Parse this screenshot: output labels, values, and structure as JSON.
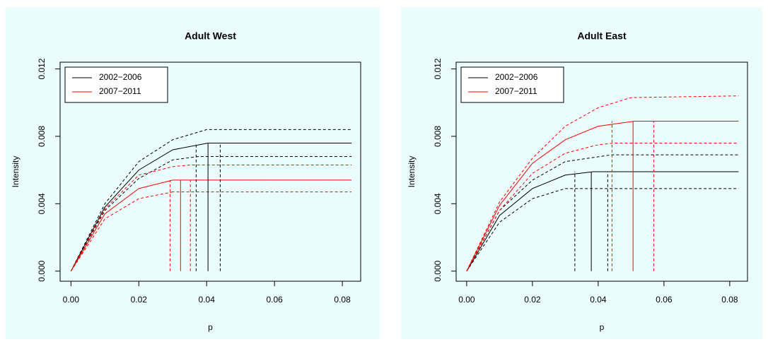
{
  "chart_data": [
    {
      "type": "line",
      "title": "Adult West",
      "xlabel": "p",
      "ylabel": "Intensity",
      "xlim": [
        -0.0032,
        0.0854
      ],
      "ylim": [
        -0.0006,
        0.0124
      ],
      "xticks": [
        {
          "value": 0,
          "label": "0.00"
        },
        {
          "value": 0.02,
          "label": "0.02"
        },
        {
          "value": 0.04,
          "label": "0.04"
        },
        {
          "value": 0.06,
          "label": "0.06"
        },
        {
          "value": 0.08,
          "label": "0.08"
        }
      ],
      "yticks": [
        {
          "value": 0,
          "label": "0.000"
        },
        {
          "value": 0.004,
          "label": "0.004"
        },
        {
          "value": 0.008,
          "label": "0.008"
        },
        {
          "value": 0.012,
          "label": "0.012"
        }
      ],
      "legend": "topleft",
      "background": "#eafcfc",
      "series": [
        {
          "name": "2002−2006",
          "color": "#000000",
          "x": [
            0,
            0.01,
            0.02,
            0.03,
            0.0404,
            0.0827
          ],
          "values": [
            0,
            0.0038,
            0.006,
            0.0072,
            0.0076,
            0.0076
          ]
        },
        {
          "color": "#000000",
          "dash": true,
          "x": [
            0,
            0.01,
            0.02,
            0.03,
            0.04,
            0.0827
          ],
          "values": [
            0,
            0.004,
            0.0065,
            0.0078,
            0.0084,
            0.0084
          ]
        },
        {
          "color": "#000000",
          "dash": true,
          "x": [
            0,
            0.01,
            0.02,
            0.03,
            0.0375,
            0.0827
          ],
          "values": [
            0,
            0.0036,
            0.0055,
            0.0066,
            0.0068,
            0.0068
          ]
        },
        {
          "name": "2007−2011",
          "color": "#ff0000",
          "x": [
            0,
            0.01,
            0.02,
            0.03,
            0.0323,
            0.0827
          ],
          "values": [
            0,
            0.0034,
            0.0049,
            0.0054,
            0.0054,
            0.0054
          ]
        },
        {
          "color": "#ff0000",
          "dash": true,
          "x": [
            0,
            0.01,
            0.02,
            0.03,
            0.035,
            0.0827
          ],
          "values": [
            0,
            0.0037,
            0.0057,
            0.0062,
            0.0063,
            0.0063
          ]
        },
        {
          "color": "#ff0000",
          "dash": true,
          "x": [
            0,
            0.01,
            0.02,
            0.03,
            0.0295,
            0.0827
          ],
          "values": [
            0,
            0.0031,
            0.0043,
            0.0047,
            0.0047,
            0.0047
          ]
        }
      ],
      "vlines": [
        {
          "x": 0.0292,
          "top": 0.0054,
          "color": "#ff0000",
          "dash": true
        },
        {
          "x": 0.0323,
          "top": 0.0054,
          "color": "#ff0000"
        },
        {
          "x": 0.0352,
          "top": 0.0054,
          "color": "#ff0000",
          "dash": true
        },
        {
          "x": 0.0369,
          "top": 0.0076,
          "color": "#000000",
          "dash": true
        },
        {
          "x": 0.0404,
          "top": 0.0076,
          "color": "#000000"
        },
        {
          "x": 0.044,
          "top": 0.0076,
          "color": "#000000",
          "dash": true
        }
      ]
    },
    {
      "type": "line",
      "title": "Adult East",
      "xlabel": "p",
      "ylabel": "Intensity",
      "xlim": [
        -0.0032,
        0.0854
      ],
      "ylim": [
        -0.0006,
        0.0124
      ],
      "xticks": [
        {
          "value": 0,
          "label": "0.00"
        },
        {
          "value": 0.02,
          "label": "0.02"
        },
        {
          "value": 0.04,
          "label": "0.04"
        },
        {
          "value": 0.06,
          "label": "0.06"
        },
        {
          "value": 0.08,
          "label": "0.08"
        }
      ],
      "yticks": [
        {
          "value": 0,
          "label": "0.000"
        },
        {
          "value": 0.004,
          "label": "0.004"
        },
        {
          "value": 0.008,
          "label": "0.008"
        },
        {
          "value": 0.012,
          "label": "0.012"
        }
      ],
      "legend": "topleft",
      "background": "#eafcfc",
      "series": [
        {
          "name": "2002−2006",
          "color": "#000000",
          "x": [
            0,
            0.01,
            0.02,
            0.03,
            0.0385,
            0.0827
          ],
          "values": [
            0,
            0.0033,
            0.0049,
            0.0057,
            0.0059,
            0.0059
          ]
        },
        {
          "color": "#000000",
          "dash": true,
          "x": [
            0,
            0.01,
            0.02,
            0.03,
            0.044,
            0.0827
          ],
          "values": [
            0,
            0.0036,
            0.0054,
            0.0065,
            0.0069,
            0.0069
          ]
        },
        {
          "color": "#000000",
          "dash": true,
          "x": [
            0,
            0.01,
            0.02,
            0.03,
            0.033,
            0.0827
          ],
          "values": [
            0,
            0.0029,
            0.0043,
            0.0049,
            0.0049,
            0.0049
          ]
        },
        {
          "name": "2007−2011",
          "color": "#ff0000",
          "x": [
            0,
            0.01,
            0.02,
            0.03,
            0.04,
            0.051,
            0.0827
          ],
          "values": [
            0,
            0.0039,
            0.0064,
            0.0078,
            0.0086,
            0.0089,
            0.0089
          ]
        },
        {
          "color": "#ff0000",
          "dash": true,
          "x": [
            0,
            0.01,
            0.02,
            0.03,
            0.04,
            0.05,
            0.0827
          ],
          "values": [
            0,
            0.0041,
            0.0067,
            0.0086,
            0.0097,
            0.0103,
            0.0104
          ]
        },
        {
          "color": "#ff0000",
          "dash": true,
          "x": [
            0,
            0.01,
            0.02,
            0.03,
            0.04,
            0.045,
            0.0827
          ],
          "values": [
            0,
            0.0036,
            0.0058,
            0.007,
            0.0075,
            0.0076,
            0.0076
          ]
        }
      ],
      "vlines": [
        {
          "x": 0.0329,
          "top": 0.0059,
          "color": "#000000",
          "dash": true
        },
        {
          "x": 0.0379,
          "top": 0.0059,
          "color": "#000000"
        },
        {
          "x": 0.0429,
          "top": 0.0059,
          "color": "#000000",
          "dash": true
        },
        {
          "x": 0.0442,
          "top": 0.0089,
          "color": "#ff0000",
          "dash": true
        },
        {
          "x": 0.0506,
          "top": 0.0089,
          "color": "#ff0000"
        },
        {
          "x": 0.0569,
          "top": 0.0089,
          "color": "#ff0000",
          "dash": true
        }
      ]
    }
  ]
}
